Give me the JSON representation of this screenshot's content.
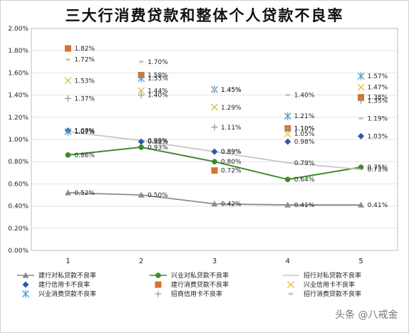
{
  "chart_data": {
    "type": "line",
    "title": "三大行消费贷款和整体个人贷款不良率",
    "xlabel": "",
    "ylabel": "",
    "categories": [
      "1",
      "2",
      "3",
      "4",
      "5"
    ],
    "ylim": [
      0,
      2.0
    ],
    "yticks": [
      "0.00%",
      "0.20%",
      "0.40%",
      "0.60%",
      "0.80%",
      "1.00%",
      "1.20%",
      "1.40%",
      "1.60%",
      "1.80%",
      "2.00%"
    ],
    "grid": true,
    "legend_position": "bottom",
    "series": [
      {
        "name": "建行对私贷款不良率",
        "kind": "line",
        "marker": "triangle",
        "color": "#8c8c8c",
        "values": [
          0.52,
          0.5,
          0.42,
          0.41,
          0.41
        ],
        "labels": [
          "0.52%",
          "0.50%",
          "0.42%",
          "0.41%",
          "0.41%"
        ]
      },
      {
        "name": "兴业对私贷款不良率",
        "kind": "line",
        "marker": "circle",
        "color": "#3f8a2a",
        "values": [
          0.86,
          0.93,
          0.8,
          0.64,
          0.75
        ],
        "labels": [
          "0.86%",
          "0.93%",
          "0.80%",
          "0.64%",
          "0.75%"
        ]
      },
      {
        "name": "招行对私贷款不良率",
        "kind": "line",
        "marker": "none",
        "color": "#c8c8c8",
        "values": [
          1.07,
          0.99,
          0.89,
          0.79,
          0.73
        ],
        "labels": [
          "1.07%",
          "0.99%",
          "0.89%",
          "0.79%",
          "0.73%"
        ]
      },
      {
        "name": "建行信用卡不良率",
        "kind": "point",
        "marker": "diamond",
        "color": "#2f57a3",
        "values": [
          1.08,
          0.98,
          0.89,
          0.98,
          1.03
        ],
        "labels": [
          "1.08%",
          "0.98%",
          "0.89%",
          "0.98%",
          "1.03%"
        ]
      },
      {
        "name": "建行消费贷款不良率",
        "kind": "point",
        "marker": "square",
        "color": "#d4732e",
        "values": [
          1.82,
          1.58,
          0.72,
          1.1,
          1.38
        ],
        "labels": [
          "1.82%",
          "1.58%",
          "0.72%",
          "1.10%",
          "1.38%"
        ]
      },
      {
        "name": "兴业信用卡不良率",
        "kind": "point",
        "marker": "x",
        "color": "#d6c435",
        "values": [
          1.53,
          1.44,
          1.29,
          1.05,
          1.47
        ],
        "labels": [
          "1.53%",
          "1.44%",
          "1.29%",
          "1.05%",
          "1.47%"
        ]
      },
      {
        "name": "兴业消费贷款不良率",
        "kind": "point",
        "marker": "star",
        "color": "#4a9ecf",
        "values": [
          1.07,
          1.55,
          1.45,
          1.21,
          1.57
        ],
        "labels": [
          "1.07%",
          "1.55%",
          "1.45%",
          "1.21%",
          "1.57%"
        ]
      },
      {
        "name": "招商信用卡不良率",
        "kind": "point",
        "marker": "plus",
        "color": "#9a9a9a",
        "values": [
          1.37,
          1.4,
          1.11,
          1.1,
          1.35
        ],
        "labels": [
          "1.37%",
          "1.40%",
          "1.11%",
          "1.10%",
          "1.35%"
        ]
      },
      {
        "name": "招行消费贷款不良率",
        "kind": "point",
        "marker": "dash",
        "color": "#d9c2a0",
        "values": [
          1.72,
          1.7,
          1.45,
          1.4,
          1.19
        ],
        "labels": [
          "1.72%",
          "1.70%",
          "1.45%",
          "1.40%",
          "1.19%"
        ]
      }
    ]
  },
  "watermark": "头条 @八戒金"
}
